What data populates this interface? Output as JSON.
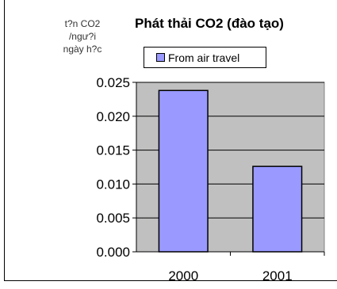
{
  "chart_data": {
    "type": "bar",
    "title": "Phát thải CO2 (đào tạo)",
    "ylabel_lines": [
      "t?n CO2",
      "/ngư?i",
      "ngày h?c"
    ],
    "xlabel": "",
    "categories": [
      "2000",
      "2001"
    ],
    "series": [
      {
        "name": "From air travel",
        "values": [
          0.0238,
          0.0126
        ]
      }
    ],
    "ylim": [
      0,
      0.025
    ],
    "yticks": [
      "0.000",
      "0.005",
      "0.010",
      "0.015",
      "0.020",
      "0.025"
    ],
    "grid": true,
    "legend_position": "top",
    "colors": {
      "bar_fill": "#9999ff",
      "plot_background": "#c0c0c0",
      "gridline": "#000000"
    }
  }
}
